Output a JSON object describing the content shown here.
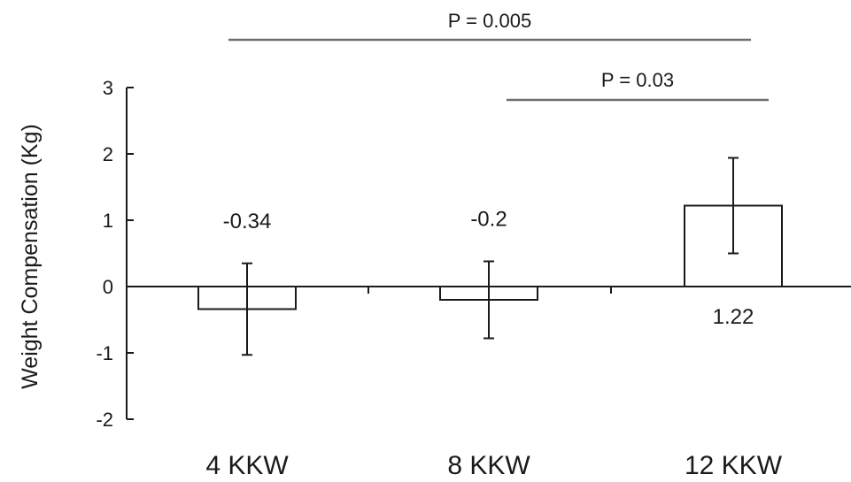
{
  "chart_data": {
    "type": "bar",
    "ylabel": "Weight Compensation (Kg)",
    "xlabel": "",
    "ylim": [
      -2,
      3
    ],
    "yticks": [
      -2,
      -1,
      0,
      1,
      2,
      3
    ],
    "ytick_labels": [
      "-2",
      "-1",
      "0",
      "1",
      "2",
      "3"
    ],
    "categories": [
      "4 KKW",
      "8 KKW",
      "12 KKW"
    ],
    "values": [
      -0.34,
      -0.2,
      1.22
    ],
    "error": [
      0.69,
      0.58,
      0.72
    ],
    "data_labels": [
      "-0.34",
      "-0.2",
      "1.22"
    ],
    "grid": false,
    "annotations": [
      {
        "text": "P = 0.005",
        "from": "4 KKW",
        "to": "12 KKW"
      },
      {
        "text": "P = 0.03",
        "from": "8 KKW",
        "to": "12 KKW"
      }
    ]
  }
}
